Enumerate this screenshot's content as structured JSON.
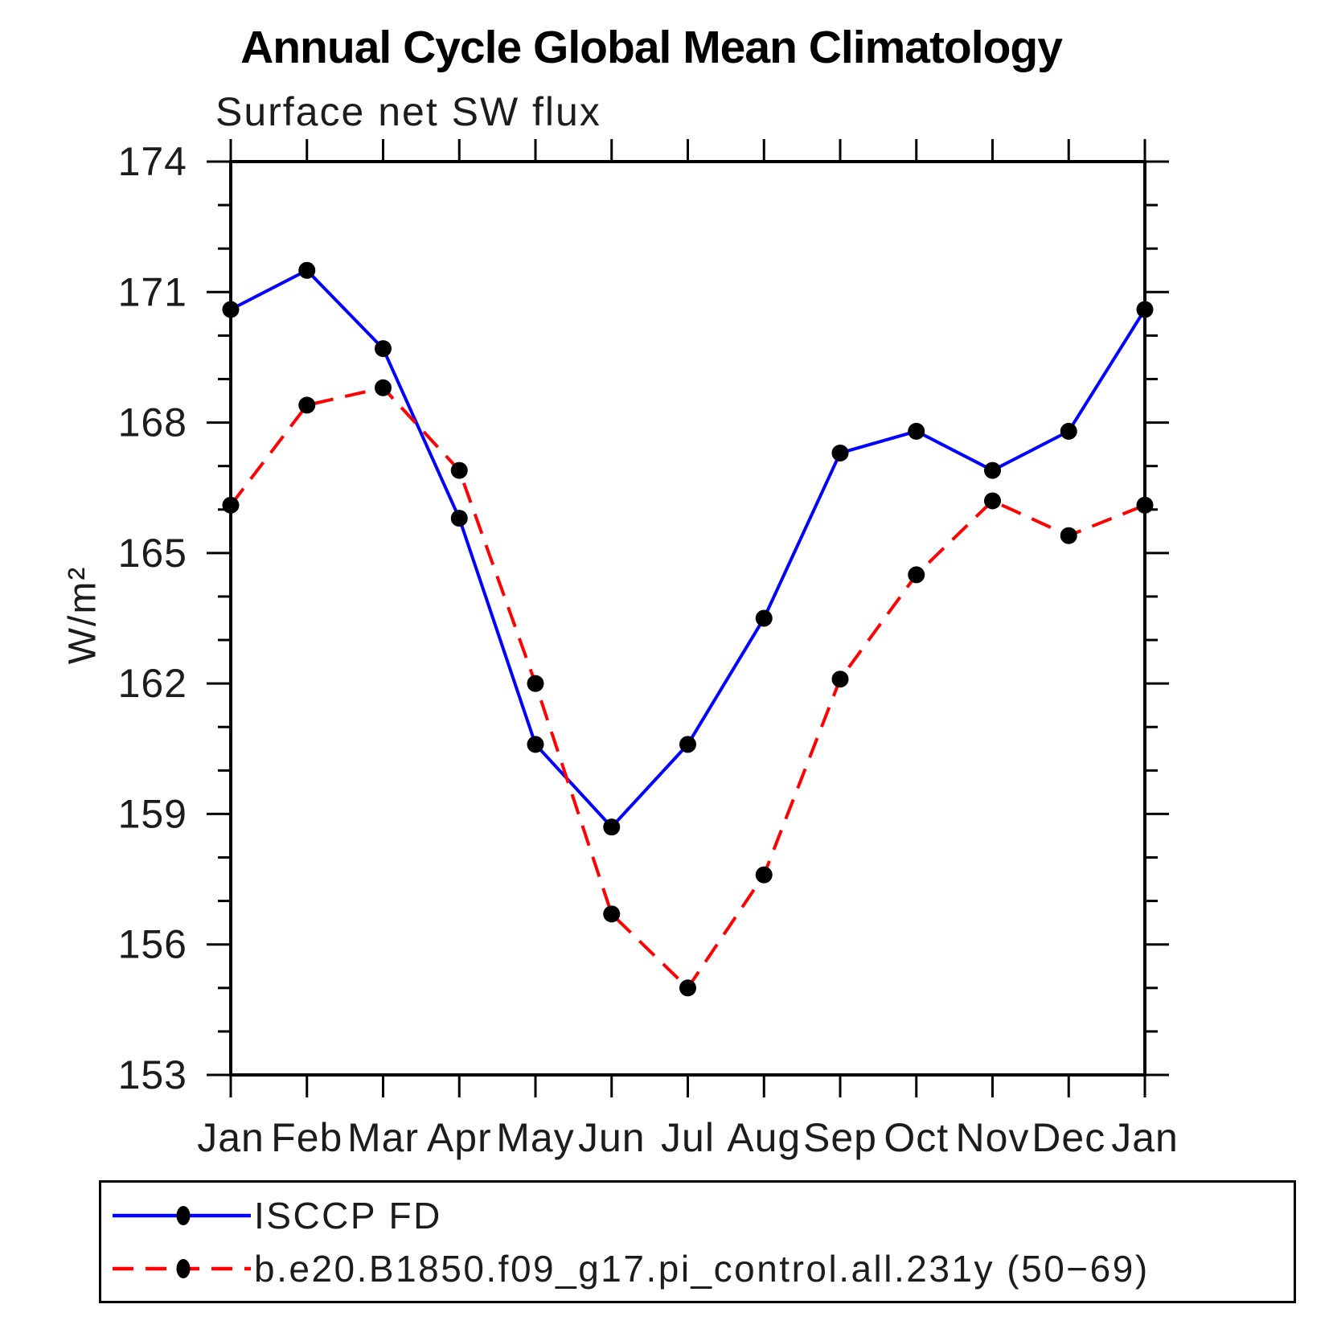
{
  "page": {
    "background": "#ffffff"
  },
  "chart_data": {
    "type": "line",
    "title": "Annual Cycle Global Mean Climatology",
    "subtitle": "Surface net SW flux",
    "ylabel": "W/m²",
    "xlabel": "",
    "categories": [
      "Jan",
      "Feb",
      "Mar",
      "Apr",
      "May",
      "Jun",
      "Jul",
      "Aug",
      "Sep",
      "Oct",
      "Nov",
      "Dec",
      "Jan"
    ],
    "ylim": [
      153,
      174
    ],
    "yticks": [
      153,
      156,
      159,
      162,
      165,
      168,
      171,
      174
    ],
    "y_minor_step": 1,
    "grid": false,
    "legend_position": "bottom",
    "axis_color": "#000000",
    "series": [
      {
        "name": "ISCCP FD",
        "color": "#0000ff",
        "style": "solid",
        "values": [
          170.6,
          171.5,
          169.7,
          165.8,
          160.6,
          158.7,
          160.6,
          163.5,
          167.3,
          167.8,
          166.9,
          167.8,
          170.6
        ]
      },
      {
        "name": "b.e20.B1850.f09_g17.pi_control.all.231y (50−69)",
        "color": "#ff0000",
        "style": "dashed",
        "values": [
          166.1,
          168.4,
          168.8,
          166.9,
          162.0,
          156.7,
          155.0,
          157.6,
          162.1,
          164.5,
          166.2,
          165.4,
          166.1
        ]
      }
    ],
    "marker": {
      "shape": "circle",
      "color": "#000000"
    }
  }
}
